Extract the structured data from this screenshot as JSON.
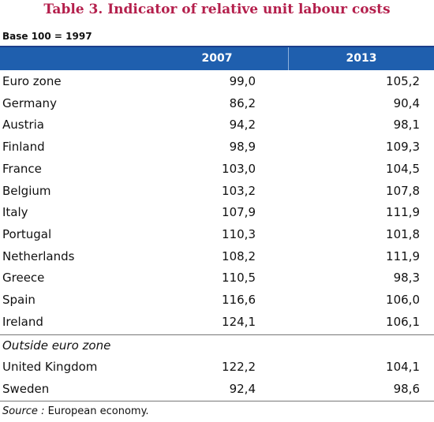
{
  "title": "Table 3. Indicator of relative unit labour costs",
  "base_note": "Base 100 = 1997",
  "columns": [
    "2007",
    "2013"
  ],
  "rows": [
    {
      "country": "Euro zone",
      "v2007": "99,0",
      "v2013": "105,2"
    },
    {
      "country": "Germany",
      "v2007": "86,2",
      "v2013": "90,4"
    },
    {
      "country": "Austria",
      "v2007": "94,2",
      "v2013": "98,1"
    },
    {
      "country": "Finland",
      "v2007": "98,9",
      "v2013": "109,3"
    },
    {
      "country": "France",
      "v2007": "103,0",
      "v2013": "104,5"
    },
    {
      "country": "Belgium",
      "v2007": "103,2",
      "v2013": "107,8"
    },
    {
      "country": "Italy",
      "v2007": "107,9",
      "v2013": "111,9"
    },
    {
      "country": "Portugal",
      "v2007": "110,3",
      "v2013": "101,8"
    },
    {
      "country": "Netherlands",
      "v2007": "108,2",
      "v2013": "111,9"
    },
    {
      "country": "Greece",
      "v2007": "110,5",
      "v2013": "98,3"
    },
    {
      "country": "Spain",
      "v2007": "116,6",
      "v2013": "106,0"
    },
    {
      "country": "Ireland",
      "v2007": "124,1",
      "v2013": "106,1"
    }
  ],
  "outside_label": "Outside euro zone",
  "outside_rows": [
    {
      "country": "United Kingdom",
      "v2007": "122,2",
      "v2013": "104,1"
    },
    {
      "country": "Sweden",
      "v2007": "92,4",
      "v2013": "98,6"
    }
  ],
  "source": {
    "label": "Source :",
    "text": " European economy."
  },
  "colors": {
    "title": "#b41f4c",
    "header_bg": "#1f5fae",
    "header_text": "#ffffff"
  }
}
